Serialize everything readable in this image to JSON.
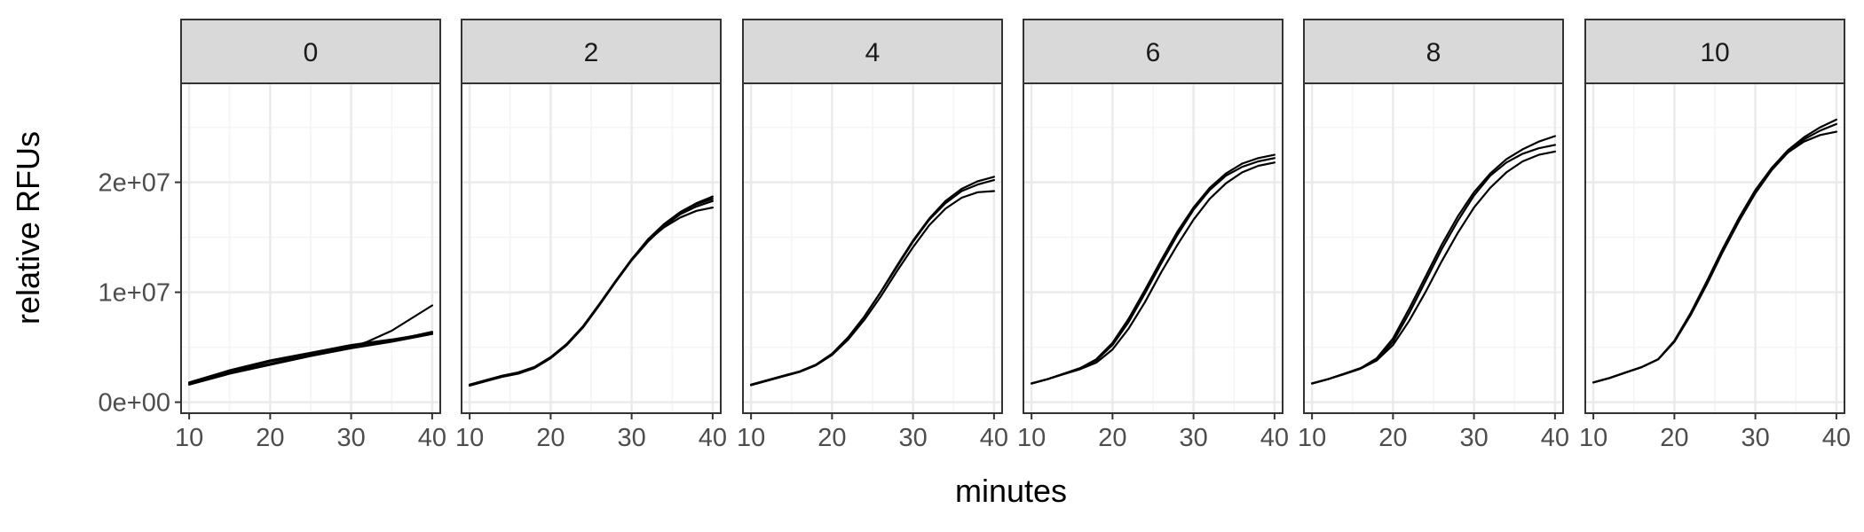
{
  "chart_data": {
    "type": "line",
    "facet_titles": [
      "0",
      "2",
      "4",
      "6",
      "8",
      "10"
    ],
    "xlabel": "minutes",
    "ylabel": "relative RFUs",
    "xlim": [
      9,
      41
    ],
    "ylim": [
      -1000000,
      29000000
    ],
    "x_ticks": [
      10,
      20,
      30,
      40
    ],
    "x_tick_labels": [
      "10",
      "20",
      "30",
      "40"
    ],
    "y_ticks": [
      0,
      10000000,
      20000000
    ],
    "y_tick_labels": [
      "0e+00",
      "1e+07",
      "2e+07"
    ],
    "grid": true,
    "colors": {
      "line": "#000000",
      "strip_fill": "#d9d9d9",
      "panel_border": "#333333",
      "grid_major": "#ebebeb",
      "grid_minor": "#f4f4f4"
    },
    "panels": [
      {
        "facet": "0",
        "series": [
          {
            "x": [
              10,
              15,
              20,
              25,
              30,
              32,
              35,
              40
            ],
            "y": [
              1700000,
              2700000,
              3500000,
              4300000,
              5000000,
              5500000,
              6500000,
              8800000
            ]
          },
          {
            "x": [
              10,
              15,
              20,
              25,
              30,
              35,
              40
            ],
            "y": [
              1800000,
              2900000,
              3800000,
              4500000,
              5200000,
              5700000,
              6300000
            ]
          },
          {
            "x": [
              10,
              15,
              20,
              25,
              30,
              35,
              40
            ],
            "y": [
              1600000,
              2600000,
              3400000,
              4200000,
              4900000,
              5500000,
              6200000
            ]
          },
          {
            "x": [
              10,
              15,
              20,
              25,
              30,
              35,
              40
            ],
            "y": [
              1750000,
              2800000,
              3700000,
              4400000,
              5100000,
              5600000,
              6400000
            ]
          }
        ]
      },
      {
        "facet": "2",
        "series": [
          {
            "x": [
              10,
              12,
              14,
              16,
              18,
              20,
              22,
              24,
              26,
              28,
              30,
              32,
              34,
              36,
              38,
              40
            ],
            "y": [
              1600000,
              2000000,
              2400000,
              2700000,
              3200000,
              4100000,
              5300000,
              6900000,
              8900000,
              11000000,
              13000000,
              14800000,
              16200000,
              17300000,
              18100000,
              18700000
            ]
          },
          {
            "x": [
              10,
              12,
              14,
              16,
              18,
              20,
              22,
              24,
              26,
              28,
              30,
              32,
              34,
              36,
              38,
              40
            ],
            "y": [
              1500000,
              1900000,
              2300000,
              2600000,
              3100000,
              4000000,
              5200000,
              6800000,
              8800000,
              10900000,
              12900000,
              14600000,
              16000000,
              17100000,
              17800000,
              18300000
            ]
          },
          {
            "x": [
              10,
              12,
              14,
              16,
              18,
              20,
              22,
              24,
              26,
              28,
              30,
              32,
              34,
              36,
              38,
              40
            ],
            "y": [
              1550000,
              2000000,
              2400000,
              2700000,
              3200000,
              4100000,
              5300000,
              6900000,
              8900000,
              11000000,
              13000000,
              14700000,
              15900000,
              16800000,
              17400000,
              17700000
            ]
          },
          {
            "x": [
              10,
              12,
              14,
              16,
              18,
              20,
              22,
              24,
              26,
              28,
              30,
              32,
              34,
              36,
              38,
              40
            ],
            "y": [
              1600000,
              2000000,
              2350000,
              2650000,
              3150000,
              4050000,
              5250000,
              6850000,
              8850000,
              10950000,
              12950000,
              14750000,
              16100000,
              17200000,
              18000000,
              18500000
            ]
          }
        ]
      },
      {
        "facet": "4",
        "series": [
          {
            "x": [
              10,
              12,
              14,
              16,
              18,
              20,
              22,
              24,
              26,
              28,
              30,
              32,
              34,
              36,
              38,
              40
            ],
            "y": [
              1600000,
              2000000,
              2400000,
              2800000,
              3400000,
              4400000,
              5900000,
              7800000,
              10000000,
              12400000,
              14700000,
              16700000,
              18300000,
              19400000,
              20100000,
              20500000
            ]
          },
          {
            "x": [
              10,
              12,
              14,
              16,
              18,
              20,
              22,
              24,
              26,
              28,
              30,
              32,
              34,
              36,
              38,
              40
            ],
            "y": [
              1600000,
              2000000,
              2400000,
              2800000,
              3400000,
              4400000,
              5900000,
              7800000,
              10000000,
              12300000,
              14600000,
              16600000,
              18100000,
              19200000,
              19800000,
              20200000
            ]
          },
          {
            "x": [
              10,
              12,
              14,
              16,
              18,
              20,
              22,
              24,
              26,
              28,
              30,
              32,
              34,
              36,
              38,
              40
            ],
            "y": [
              1550000,
              1950000,
              2350000,
              2750000,
              3350000,
              4300000,
              5700000,
              7500000,
              9600000,
              11900000,
              14100000,
              16100000,
              17600000,
              18600000,
              19100000,
              19200000
            ]
          }
        ]
      },
      {
        "facet": "6",
        "series": [
          {
            "x": [
              10,
              12,
              14,
              16,
              18,
              20,
              22,
              24,
              26,
              28,
              30,
              32,
              34,
              36,
              38,
              40
            ],
            "y": [
              1700000,
              2100000,
              2600000,
              3100000,
              3900000,
              5400000,
              7600000,
              10200000,
              12900000,
              15500000,
              17700000,
              19500000,
              20800000,
              21700000,
              22200000,
              22500000
            ]
          },
          {
            "x": [
              10,
              12,
              14,
              16,
              18,
              20,
              22,
              24,
              26,
              28,
              30,
              32,
              34,
              36,
              38,
              40
            ],
            "y": [
              1700000,
              2100000,
              2600000,
              3100000,
              3800000,
              5200000,
              7300000,
              9900000,
              12600000,
              15200000,
              17500000,
              19300000,
              20600000,
              21400000,
              21900000,
              22200000
            ]
          },
          {
            "x": [
              10,
              12,
              14,
              16,
              18,
              20,
              22,
              24,
              26,
              28,
              30,
              32,
              34,
              36,
              38,
              40
            ],
            "y": [
              1700000,
              2100000,
              2550000,
              3000000,
              3600000,
              4800000,
              6700000,
              9100000,
              11800000,
              14300000,
              16600000,
              18500000,
              19900000,
              20900000,
              21500000,
              21800000
            ]
          }
        ]
      },
      {
        "facet": "8",
        "series": [
          {
            "x": [
              10,
              12,
              14,
              16,
              18,
              20,
              22,
              24,
              26,
              28,
              30,
              32,
              34,
              36,
              38,
              40
            ],
            "y": [
              1700000,
              2100000,
              2600000,
              3100000,
              4000000,
              5800000,
              8500000,
              11400000,
              14300000,
              16900000,
              19100000,
              20800000,
              22100000,
              23000000,
              23700000,
              24200000
            ]
          },
          {
            "x": [
              10,
              12,
              14,
              16,
              18,
              20,
              22,
              24,
              26,
              28,
              30,
              32,
              34,
              36,
              38,
              40
            ],
            "y": [
              1700000,
              2100000,
              2600000,
              3100000,
              3900000,
              5500000,
              8100000,
              11000000,
              13900000,
              16500000,
              18800000,
              20600000,
              21800000,
              22600000,
              23100000,
              23400000
            ]
          },
          {
            "x": [
              10,
              12,
              14,
              16,
              18,
              20,
              22,
              24,
              26,
              28,
              30,
              32,
              34,
              36,
              38,
              40
            ],
            "y": [
              1700000,
              2100000,
              2550000,
              3050000,
              3800000,
              5200000,
              7400000,
              10000000,
              12800000,
              15400000,
              17700000,
              19500000,
              20900000,
              21900000,
              22500000,
              22800000
            ]
          }
        ]
      },
      {
        "facet": "10",
        "series": [
          {
            "x": [
              10,
              12,
              14,
              16,
              18,
              20,
              22,
              24,
              26,
              28,
              30,
              32,
              34,
              36,
              38,
              40
            ],
            "y": [
              1800000,
              2200000,
              2700000,
              3200000,
              3900000,
              5600000,
              8100000,
              11000000,
              14000000,
              16800000,
              19300000,
              21300000,
              22900000,
              24100000,
              25000000,
              25700000
            ]
          },
          {
            "x": [
              10,
              12,
              14,
              16,
              18,
              20,
              22,
              24,
              26,
              28,
              30,
              32,
              34,
              36,
              38,
              40
            ],
            "y": [
              1800000,
              2200000,
              2700000,
              3200000,
              3900000,
              5500000,
              7900000,
              10700000,
              13700000,
              16500000,
              19000000,
              21100000,
              22700000,
              23900000,
              24700000,
              25300000
            ]
          },
          {
            "x": [
              10,
              12,
              14,
              16,
              18,
              20,
              22,
              24,
              26,
              28,
              30,
              32,
              34,
              36,
              38,
              40
            ],
            "y": [
              1800000,
              2200000,
              2700000,
              3200000,
              3900000,
              5500000,
              8000000,
              10900000,
              13900000,
              16700000,
              19200000,
              21200000,
              22700000,
              23700000,
              24300000,
              24600000
            ]
          }
        ]
      }
    ]
  }
}
